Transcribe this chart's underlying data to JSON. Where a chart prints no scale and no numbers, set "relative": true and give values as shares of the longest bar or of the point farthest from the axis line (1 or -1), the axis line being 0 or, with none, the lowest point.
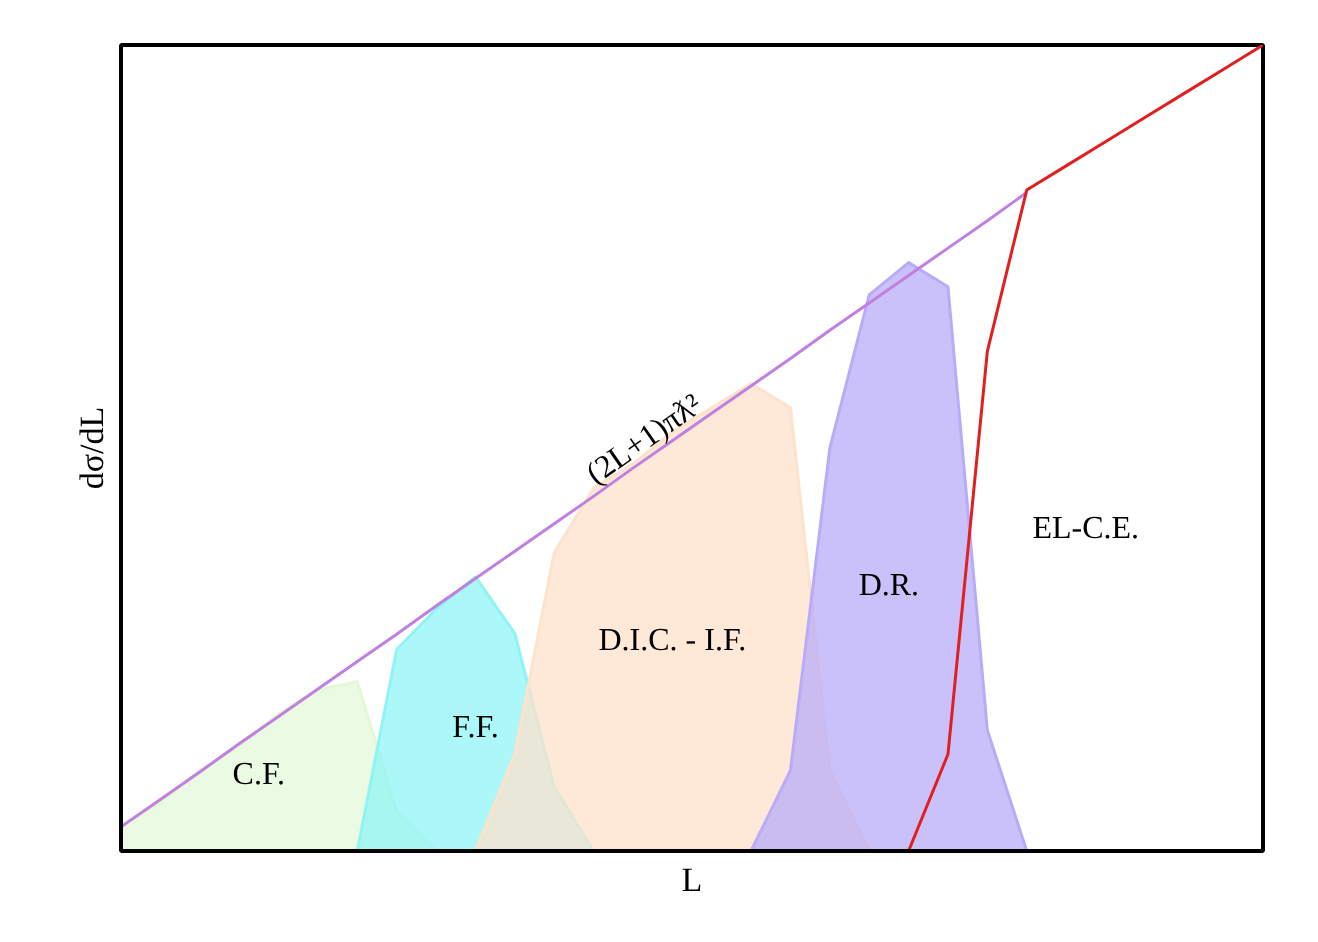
{
  "chart_data": {
    "type": "area",
    "relative": true,
    "xlabel": "L",
    "ylabel": "dσ/dL",
    "categories": [
      null,
      null,
      null,
      null,
      null,
      null,
      null,
      null,
      null,
      null,
      null,
      null,
      null,
      null,
      null,
      null,
      null,
      null,
      null,
      null,
      null,
      null,
      null,
      null,
      null,
      null,
      null,
      null,
      null,
      null
    ],
    "series": [
      {
        "name": "(2L+1)πƛ²",
        "type": "line",
        "color": "#c080e0",
        "values": [
          0.03,
          0.064,
          0.098,
          0.133,
          0.167,
          0.201,
          0.235,
          0.269,
          0.304,
          0.338,
          0.372,
          0.406,
          0.44,
          0.475,
          0.509,
          0.543,
          0.577,
          0.611,
          0.646,
          0.68,
          0.714,
          0.748,
          0.782,
          0.817,
          null,
          null,
          null,
          null,
          null,
          null
        ]
      },
      {
        "name": "C.F.",
        "color": "#e4f8d8",
        "values": [
          0.03,
          0.06,
          0.1,
          0.13,
          0.17,
          0.2,
          0.21,
          0.05,
          0,
          null,
          null,
          null,
          null,
          null,
          null,
          null,
          null,
          null,
          null,
          null,
          null,
          null,
          null,
          null,
          null,
          null,
          null,
          null,
          null,
          null
        ]
      },
      {
        "name": "F.F.",
        "color": "#90f4f4",
        "values": [
          null,
          null,
          null,
          null,
          null,
          null,
          0,
          0.25,
          0.3,
          0.34,
          0.27,
          0.08,
          0,
          null,
          null,
          null,
          null,
          null,
          null,
          null,
          null,
          null,
          null,
          null,
          null,
          null,
          null,
          null,
          null,
          null
        ]
      },
      {
        "name": "D.I.C. - I.F.",
        "color": "#fde2cc",
        "values": [
          null,
          null,
          null,
          null,
          null,
          null,
          null,
          null,
          null,
          0,
          0.12,
          0.37,
          0.45,
          0.48,
          0.52,
          0.55,
          0.58,
          0.55,
          0.1,
          0,
          null,
          null,
          null,
          null,
          null,
          null,
          null,
          null,
          null,
          null
        ]
      },
      {
        "name": "D.R.",
        "color": "#b8acf8",
        "values": [
          null,
          null,
          null,
          null,
          null,
          null,
          null,
          null,
          null,
          null,
          null,
          null,
          null,
          null,
          null,
          null,
          0,
          0.1,
          0.5,
          0.69,
          0.73,
          0.7,
          0.15,
          0,
          null,
          null,
          null,
          null,
          null,
          null
        ]
      },
      {
        "name": "EL-C.E.",
        "type": "line",
        "color": "#e02020",
        "values": [
          null,
          null,
          null,
          null,
          null,
          null,
          null,
          null,
          null,
          null,
          null,
          null,
          null,
          null,
          null,
          null,
          null,
          null,
          null,
          null,
          0,
          0.12,
          0.62,
          0.82,
          0.85,
          0.88,
          0.91,
          0.94,
          0.97,
          1.0
        ]
      }
    ]
  }
}
